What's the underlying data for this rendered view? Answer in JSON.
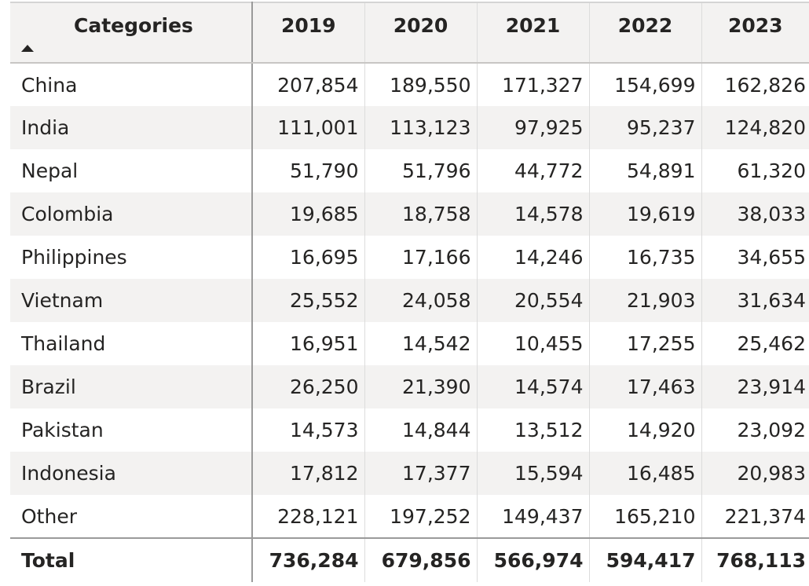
{
  "table": {
    "headers": {
      "category": "Categories",
      "years": [
        "2019",
        "2020",
        "2021",
        "2022",
        "2023"
      ]
    },
    "rows": [
      {
        "label": "China",
        "values": [
          "207,854",
          "189,550",
          "171,327",
          "154,699",
          "162,826"
        ]
      },
      {
        "label": "India",
        "values": [
          "111,001",
          "113,123",
          "97,925",
          "95,237",
          "124,820"
        ]
      },
      {
        "label": "Nepal",
        "values": [
          "51,790",
          "51,796",
          "44,772",
          "54,891",
          "61,320"
        ]
      },
      {
        "label": "Colombia",
        "values": [
          "19,685",
          "18,758",
          "14,578",
          "19,619",
          "38,033"
        ]
      },
      {
        "label": "Philippines",
        "values": [
          "16,695",
          "17,166",
          "14,246",
          "16,735",
          "34,655"
        ]
      },
      {
        "label": "Vietnam",
        "values": [
          "25,552",
          "24,058",
          "20,554",
          "21,903",
          "31,634"
        ]
      },
      {
        "label": "Thailand",
        "values": [
          "16,951",
          "14,542",
          "10,455",
          "17,255",
          "25,462"
        ]
      },
      {
        "label": "Brazil",
        "values": [
          "26,250",
          "21,390",
          "14,574",
          "17,463",
          "23,914"
        ]
      },
      {
        "label": "Pakistan",
        "values": [
          "14,573",
          "14,844",
          "13,512",
          "14,920",
          "23,092"
        ]
      },
      {
        "label": "Indonesia",
        "values": [
          "17,812",
          "17,377",
          "15,594",
          "16,485",
          "20,983"
        ]
      },
      {
        "label": "Other",
        "values": [
          "228,121",
          "197,252",
          "149,437",
          "165,210",
          "221,374"
        ]
      }
    ],
    "total": {
      "label": "Total",
      "values": [
        "736,284",
        "679,856",
        "566,974",
        "594,417",
        "768,113"
      ]
    },
    "sort": {
      "column": "Categories",
      "direction": "ascending",
      "icon": "sort-ascending-icon"
    }
  },
  "colors": {
    "header_background": "#f3f2f1",
    "alternate_row_background": "#f3f2f1",
    "text": "#252423",
    "divider": "#9a9a9a"
  }
}
